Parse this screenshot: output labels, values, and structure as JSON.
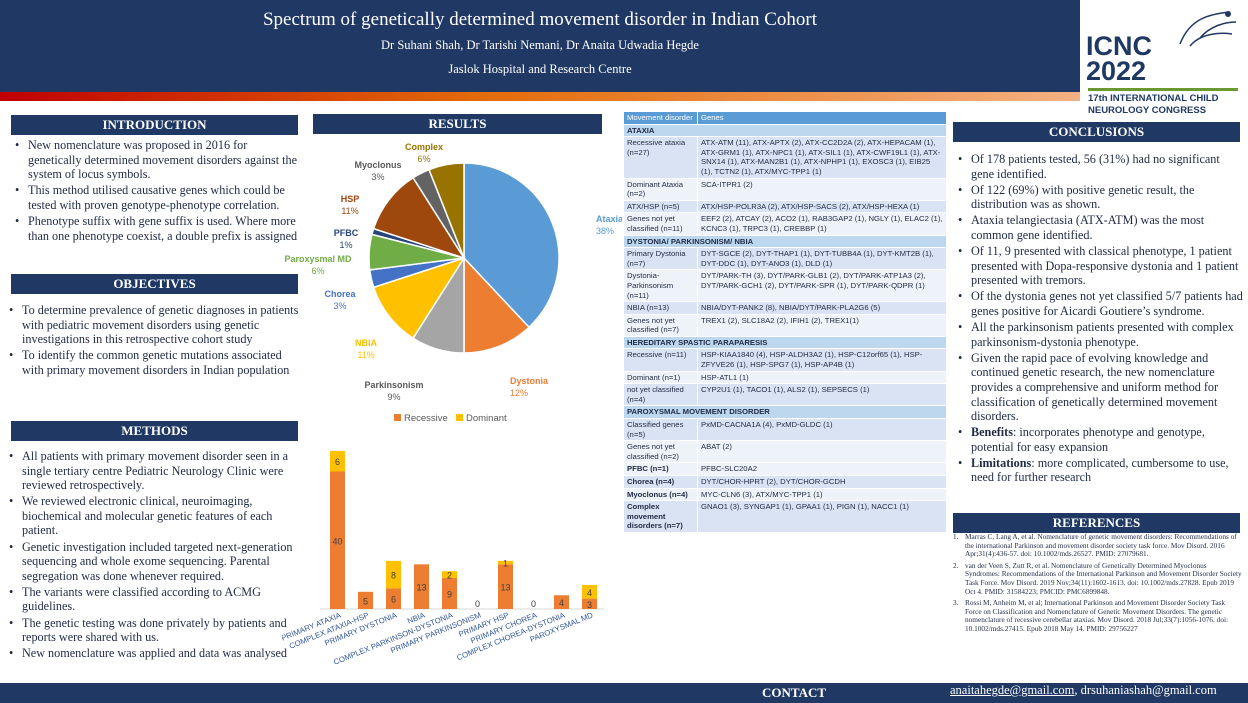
{
  "header": {
    "title": "Spectrum of genetically determined movement disorder in Indian Cohort",
    "authors": "Dr Suhani Shah, Dr Tarishi Nemani, Dr Anaita Udwadia Hegde",
    "institution": "Jaslok Hospital and Research Centre"
  },
  "logo": {
    "line1": "ICNC",
    "line2": "2022",
    "sub1": "17th INTERNATIONAL CHILD",
    "sub2": "NEUROLOGY CONGRESS"
  },
  "introduction": {
    "heading": "INTRODUCTION",
    "items": [
      "New nomenclature was proposed in 2016 for genetically determined movement disorders against the system of locus symbols.",
      "This method utilised causative genes which could be tested with proven genotype-phenotype correlation.",
      "Phenotype suffix with gene suffix is used. Where more than one phenotype coexist, a double prefix is assigned"
    ]
  },
  "objectives": {
    "heading": "OBJECTIVES",
    "items": [
      "To determine prevalence of genetic diagnoses in patients with pediatric movement disorders using genetic investigations in this retrospective cohort study",
      "To identify the common genetic mutations associated with primary movement disorders in Indian population"
    ]
  },
  "methods": {
    "heading": "METHODS",
    "items": [
      "All patients with primary movement disorder seen in a single tertiary centre Pediatric Neurology Clinic were reviewed retrospectively.",
      "We reviewed electronic clinical, neuroimaging, biochemical and molecular genetic features of each patient.",
      "Genetic investigation included targeted next-generation sequencing and whole exome sequencing. Parental segregation was done whenever required.",
      "The variants were classified according to ACMG guidelines.",
      "The genetic testing was done privately by patients and reports were shared with us.",
      "New nomenclature was applied and data was analysed"
    ]
  },
  "results": {
    "heading": "RESULTS"
  },
  "chart_data": [
    {
      "type": "pie",
      "slices": [
        {
          "label": "Ataxia",
          "value": 38,
          "pct": "38%",
          "color": "#5b9bd5"
        },
        {
          "label": "Dystonia",
          "value": 12,
          "pct": "12%",
          "color": "#ed7d31"
        },
        {
          "label": "Parkinsonism",
          "value": 9,
          "pct": "9%",
          "color": "#a5a5a5"
        },
        {
          "label": "NBIA",
          "value": 11,
          "pct": "11%",
          "color": "#ffc000"
        },
        {
          "label": "Chorea",
          "value": 3,
          "pct": "3%",
          "color": "#4472c4"
        },
        {
          "label": "Paroxysmal MD",
          "value": 6,
          "pct": "6%",
          "color": "#70ad47"
        },
        {
          "label": "PFBC",
          "value": 1,
          "pct": "1%",
          "color": "#264478"
        },
        {
          "label": "HSP",
          "value": 11,
          "pct": "11%",
          "color": "#9e480e"
        },
        {
          "label": "Myoclonus",
          "value": 3,
          "pct": "3%",
          "color": "#636363"
        },
        {
          "label": "Complex",
          "value": 6,
          "pct": "6%",
          "color": "#997300"
        }
      ]
    },
    {
      "type": "bar",
      "stacked": true,
      "categories": [
        "PRIMARY ATAXIA",
        "COMPLEX ATAXIA-HSP",
        "PRIMARY DYSTONIA",
        "NBIA",
        "COMPLEX PARKINSON-DYSTONIA",
        "PRIMARY PARKINSONISM",
        "PRIMARY HSP",
        "PRIMARY CHOREA",
        "COMPLEX CHOREA-DYSTONIA",
        "PAROXYSMAL MD"
      ],
      "series": [
        {
          "name": "Recessive",
          "color": "#ed7d31",
          "values": [
            40,
            5,
            6,
            13,
            9,
            0,
            13,
            0,
            4,
            3
          ]
        },
        {
          "name": "Dominant",
          "color": "#ffc000",
          "values": [
            6,
            0,
            8,
            0,
            2,
            0,
            1,
            0,
            0,
            4
          ]
        }
      ],
      "ylim": [
        0,
        48
      ],
      "legend": "top"
    }
  ],
  "table": {
    "headers": [
      "Movement disorder",
      "Genes"
    ],
    "sections": [
      {
        "title": "ATAXIA",
        "rows": [
          [
            "Recessive ataxia (n=27)",
            "ATX-ATM (11), ATX-APTX (2), ATX-CC2D2A (2), ATX-HEPACAM (1), ATX-GRM1 (1), ATX-NPC1 (1), ATX-SIL1 (1), ATX-CWF19L1 (1), ATX-SNX14 (1), ATX-MAN2B1 (1), ATX-NPHP1 (1), EXOSC3 (1), EIB25 (1), TCTN2 (1), ATX/MYC-TPP1 (1)"
          ],
          [
            "Dominant Ataxia (n=2)",
            "SCA-ITPR1 (2)"
          ],
          [
            "ATX/HSP (n=5)",
            "ATX/HSP-POLR3A (2), ATX/HSP-SACS (2), ATX/HSP-HEXA (1)"
          ],
          [
            "Genes not yet classified (n=11)",
            "EEF2 (2), ATCAY (2), ACO2 (1), RAB3GAP2 (1), NGLY (1), ELAC2 (1), KCNC3 (1), TRPC3 (1), CREBBP (1)"
          ]
        ]
      },
      {
        "title": "DYSTONIA/ PARKINSONISM/ NBIA",
        "rows": [
          [
            "Primary Dystonia (n=7)",
            "DYT-SGCE (2), DYT-THAP1 (1), DYT-TUBB4A (1), DYT-KMT2B (1), DYT-DDC (1), DYT-ANO3 (1), DLD (1)"
          ],
          [
            "Dystonia-Parkinsonism (n=11)",
            "DYT/PARK-TH (3), DYT/PARK-GLB1 (2), DYT/PARK-ATP1A3 (2), DYT/PARK-GCH1 (2), DYT/PARK-SPR (1), DYT/PARK-QDPR (1)"
          ],
          [
            "NBIA (n=13)",
            "NBIA/DYT-PANK2 (8), NBIA/DYT/PARK-PLA2G6 (5)"
          ],
          [
            "Genes not yet classified (n=7)",
            "TREX1 (2), SLC18A2 (2), IFIH1 (2), TREX1(1)"
          ]
        ]
      },
      {
        "title": "HEREDITARY SPASTIC PARAPARESIS",
        "rows": [
          [
            "Recessive (n=11)",
            "HSP-KIAA1840 (4), HSP-ALDH3A2 (1), HSP-C12orf65 (1), HSP-ZFYVE26 (1), HSP-SPG7 (1), HSP-AP4B (1)"
          ],
          [
            "Dominant (n=1)",
            "HSP-ATL1 (1)"
          ],
          [
            "not yet classified (n=4)",
            "CYP2U1 (1), TACO1 (1), ALS2 (1), SEPSECS (1)"
          ]
        ]
      },
      {
        "title": "PAROXYSMAL MOVEMENT DISORDER",
        "rows": [
          [
            "Classified genes (n=5)",
            "PxMD-CACNA1A (4), PxMD-GLDC (1)"
          ],
          [
            "Genes not yet classified (n=2)",
            "ABAT (2)"
          ]
        ]
      }
    ],
    "tail_rows": [
      [
        "PFBC (n=1)",
        "PFBC-SLC20A2"
      ],
      [
        "Chorea (n=4)",
        "DYT/CHOR-HPRT (2), DYT/CHOR-GCDH"
      ],
      [
        "Myoclonus (n=4)",
        "MYC-CLN6 (3), ATX/MYC-TPP1 (1)"
      ],
      [
        "Complex movement disorders (n=7)",
        "GNAO1 (3), SYNGAP1 (1), GPAA1 (1), PIGN (1), NACC1 (1)"
      ]
    ]
  },
  "conclusions": {
    "heading": "CONCLUSIONS",
    "items": [
      "Of 178 patients tested, 56 (31%) had no significant gene identified.",
      "Of 122 (69%) with positive genetic result, the distribution was as shown.",
      "Ataxia telangiectasia (ATX-ATM) was the most common gene identified.",
      "Of 11, 9 presented with classical phenotype, 1 patient presented with Dopa-responsive dystonia and 1 patient presented with tremors.",
      "Of the dystonia genes not yet classified 5/7 patients had genes positive for Aicardi Goutiere’s syndrome.",
      "All the parkinsonism patients presented with complex parkinsonism-dystonia phenotype.",
      "Given the rapid pace of evolving knowledge and continued genetic research, the new nomenclature provides a comprehensive and uniform method for classification of genetically determined movement disorders."
    ],
    "benefits_label": "Benefits",
    "benefits_text": ": incorporates phenotype and genotype, potential for easy expansion",
    "limitations_label": "Limitations",
    "limitations_text": ": more complicated, cumbersome to use, need for further research"
  },
  "references": {
    "heading": "REFERENCES",
    "items": [
      "Marras C, Lang A, et al. Nomenclature of genetic movement disorders: Recommendations of the international Parkinson and movement disorder society task force. Mov Disord. 2016 Apr;31(4):436-57. doi: 10.1002/mds.26527. PMID: 27079681.",
      "van der Veen S, Zutt R, et al. Nomenclature of Genetically Determined Myoclonus Syndromes: Recommendations of the International Parkinson and Movement Disorder Society Task Force. Mov Disord. 2019 Nov;34(11):1602-1613. doi: 10.1002/mds.27828. Epub 2019 Oct 4. PMID: 31584223; PMCID: PMC6899848.",
      "Rossi M, Anheim M, et al; International Parkinson and Movement Disorder Society Task Force on Classification and Nomenclature of Genetic Movement Disorders. The genetic nomenclature of recessive cerebellar ataxias. Mov Disord. 2018 Jul;33(7):1056-1076. doi: 10.1002/mds.27415. Epub 2018 May 14. PMID: 29756227"
    ]
  },
  "contact": {
    "label": "CONTACT",
    "email1": "anaitahegde@gmail.com",
    "separator": ", ",
    "email2": "drsuhaniashah@gmail.com"
  }
}
